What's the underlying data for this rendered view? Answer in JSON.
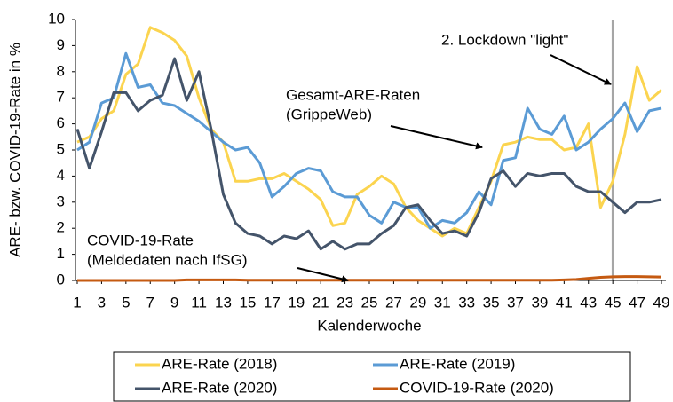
{
  "chart_data": {
    "type": "line",
    "y_label": "ARE- bzw. COVID-19-Rate in %",
    "x_label": "Kalenderwoche",
    "x": [
      1,
      2,
      3,
      4,
      5,
      6,
      7,
      8,
      9,
      10,
      11,
      12,
      13,
      14,
      15,
      16,
      17,
      18,
      19,
      20,
      21,
      22,
      23,
      24,
      25,
      26,
      27,
      28,
      29,
      30,
      31,
      32,
      33,
      34,
      35,
      36,
      37,
      38,
      39,
      40,
      41,
      42,
      43,
      44,
      45,
      46,
      47,
      48,
      49
    ],
    "xlim": [
      1,
      49
    ],
    "xticks": [
      1,
      3,
      5,
      7,
      9,
      11,
      13,
      15,
      17,
      19,
      21,
      23,
      25,
      27,
      29,
      31,
      33,
      35,
      37,
      39,
      41,
      43,
      45,
      47,
      49
    ],
    "ylim": [
      0,
      10
    ],
    "yticks": [
      0,
      1,
      2,
      3,
      4,
      5,
      6,
      7,
      8,
      9,
      10
    ],
    "vlines": [
      45
    ],
    "series": [
      {
        "name": "ARE-Rate (2018)",
        "color": "#fbd44f",
        "values": [
          5.3,
          5.5,
          6.2,
          6.5,
          7.9,
          8.3,
          9.7,
          9.5,
          9.2,
          8.6,
          7.0,
          5.8,
          5.3,
          3.8,
          3.8,
          3.9,
          3.9,
          4.1,
          3.8,
          3.5,
          3.1,
          2.1,
          2.2,
          3.3,
          3.6,
          4.0,
          3.7,
          2.8,
          2.3,
          2.0,
          1.7,
          2.0,
          1.8,
          2.8,
          3.8,
          5.2,
          5.3,
          5.5,
          5.4,
          5.4,
          5.0,
          5.1,
          6.0,
          2.8,
          3.8,
          5.6,
          8.2,
          6.9,
          7.3
        ]
      },
      {
        "name": "ARE-Rate (2019)",
        "color": "#5b9bd5",
        "values": [
          5.0,
          5.3,
          6.8,
          7.0,
          8.7,
          7.4,
          7.5,
          6.8,
          6.7,
          6.4,
          6.1,
          5.7,
          5.3,
          5.0,
          5.1,
          4.5,
          3.2,
          3.6,
          4.1,
          4.3,
          4.2,
          3.4,
          3.2,
          3.2,
          2.5,
          2.2,
          3.0,
          2.8,
          2.8,
          2.0,
          2.3,
          2.2,
          2.6,
          3.4,
          2.9,
          4.6,
          4.7,
          6.6,
          5.8,
          5.6,
          6.3,
          5.0,
          5.3,
          5.8,
          6.2,
          6.8,
          5.7,
          6.5,
          6.6
        ]
      },
      {
        "name": "ARE-Rate (2020)",
        "color": "#44546a",
        "values": [
          5.8,
          4.3,
          5.7,
          7.2,
          7.2,
          6.5,
          6.9,
          7.1,
          8.5,
          6.9,
          8.0,
          5.8,
          3.3,
          2.2,
          1.8,
          1.7,
          1.4,
          1.7,
          1.6,
          1.9,
          1.2,
          1.5,
          1.2,
          1.4,
          1.4,
          1.8,
          2.1,
          2.8,
          2.9,
          2.3,
          1.8,
          1.9,
          1.7,
          2.6,
          3.9,
          4.2,
          3.6,
          4.1,
          4.0,
          4.1,
          4.1,
          3.6,
          3.4,
          3.4,
          3.0,
          2.6,
          3.0,
          3.0,
          3.1
        ]
      },
      {
        "name": "COVID-19-Rate (2020)",
        "color": "#c55a11",
        "values": [
          0,
          0,
          0,
          0,
          0,
          0,
          0,
          0,
          0,
          0.02,
          0.02,
          0.02,
          0.02,
          0.02,
          0.01,
          0.01,
          0.01,
          0.01,
          0.01,
          0.01,
          0.01,
          0.01,
          0.01,
          0.01,
          0.01,
          0.01,
          0.01,
          0.01,
          0.01,
          0.01,
          0.01,
          0.01,
          0.01,
          0.01,
          0.01,
          0.01,
          0.01,
          0.01,
          0.01,
          0.01,
          0.02,
          0.04,
          0.08,
          0.12,
          0.14,
          0.15,
          0.15,
          0.14,
          0.13
        ]
      }
    ],
    "annotations": [
      {
        "lines": [
          "2. Lockdown \"light\""
        ]
      },
      {
        "lines": [
          "Gesamt-ARE-Raten",
          "(GrippeWeb)"
        ]
      },
      {
        "lines": [
          "COVID-19-Rate",
          "(Meldedaten nach IfSG)"
        ]
      }
    ]
  }
}
